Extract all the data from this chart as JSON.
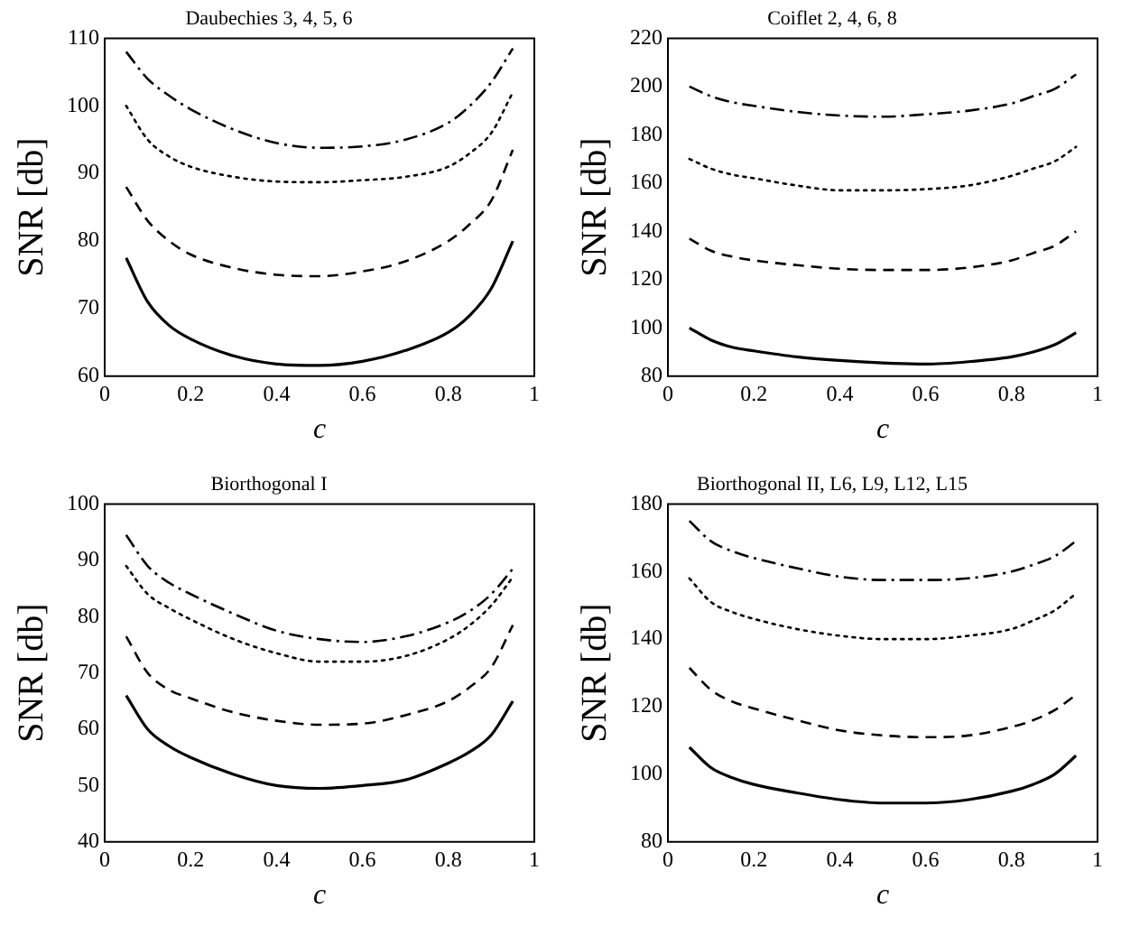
{
  "chart_data": [
    {
      "type": "line",
      "title": "Daubechies 3, 4, 5, 6",
      "xlabel": "c",
      "ylabel": "SNR [db]",
      "xlim": [
        0,
        1
      ],
      "xticks": [
        0,
        0.2,
        0.4,
        0.6,
        0.8,
        1
      ],
      "ylim": [
        60,
        110
      ],
      "yticks": [
        60,
        70,
        80,
        90,
        100,
        110
      ],
      "x": [
        0.05,
        0.1,
        0.15,
        0.2,
        0.3,
        0.4,
        0.5,
        0.6,
        0.7,
        0.8,
        0.85,
        0.9,
        0.95
      ],
      "series": [
        {
          "color": "#000000",
          "line_style": "solid",
          "values": [
            77.5,
            71,
            67.5,
            65.5,
            63,
            61.8,
            61.6,
            62.2,
            63.8,
            66.5,
            69,
            73,
            80
          ]
        },
        {
          "color": "#000000",
          "line_style": "dashed",
          "values": [
            88,
            83,
            80,
            78,
            76,
            75,
            74.8,
            75.5,
            77,
            80,
            82.5,
            86,
            93.5
          ]
        },
        {
          "color": "#000000",
          "line_style": "dotted",
          "values": [
            100,
            95,
            92.5,
            91,
            89.5,
            88.8,
            88.7,
            89,
            89.5,
            91,
            93,
            96,
            102
          ]
        },
        {
          "color": "#000000",
          "line_style": "dashdot",
          "values": [
            108,
            104,
            101.5,
            99.5,
            96.5,
            94.5,
            93.8,
            94,
            95,
            97.5,
            100,
            103.5,
            108.5
          ]
        }
      ]
    },
    {
      "type": "line",
      "title": "Coiflet 2, 4, 6, 8",
      "xlabel": "c",
      "ylabel": "SNR [db]",
      "xlim": [
        0,
        1
      ],
      "xticks": [
        0,
        0.2,
        0.4,
        0.6,
        0.8,
        1
      ],
      "ylim": [
        80,
        220
      ],
      "yticks": [
        80,
        100,
        120,
        140,
        160,
        180,
        200,
        220
      ],
      "x": [
        0.05,
        0.1,
        0.15,
        0.2,
        0.3,
        0.4,
        0.5,
        0.6,
        0.7,
        0.8,
        0.85,
        0.9,
        0.95
      ],
      "series": [
        {
          "color": "#000000",
          "line_style": "solid",
          "values": [
            100,
            95,
            92,
            90.5,
            88,
            86.5,
            85.5,
            85,
            86,
            88,
            90,
            93,
            98
          ]
        },
        {
          "color": "#000000",
          "line_style": "dashed",
          "values": [
            137,
            132,
            129.5,
            128,
            126,
            124.5,
            124,
            124,
            125,
            128,
            131,
            134,
            140
          ]
        },
        {
          "color": "#000000",
          "line_style": "dotted",
          "values": [
            170,
            166,
            163.5,
            162,
            159,
            157,
            157,
            157.5,
            159,
            163,
            166,
            169,
            175
          ]
        },
        {
          "color": "#000000",
          "line_style": "dashdot",
          "values": [
            200,
            196,
            193.5,
            192,
            189.5,
            188,
            187.5,
            188.5,
            190,
            193,
            196,
            199,
            205
          ]
        }
      ]
    },
    {
      "type": "line",
      "title": "Biorthogonal I",
      "xlabel": "c",
      "ylabel": "SNR [db]",
      "xlim": [
        0,
        1
      ],
      "xticks": [
        0,
        0.2,
        0.4,
        0.6,
        0.8,
        1
      ],
      "ylim": [
        40,
        100
      ],
      "yticks": [
        40,
        50,
        60,
        70,
        80,
        90,
        100
      ],
      "x": [
        0.05,
        0.1,
        0.15,
        0.2,
        0.3,
        0.4,
        0.5,
        0.6,
        0.7,
        0.8,
        0.85,
        0.9,
        0.95
      ],
      "series": [
        {
          "color": "#000000",
          "line_style": "solid",
          "values": [
            66,
            60,
            57,
            55,
            52,
            50,
            49.5,
            50,
            51,
            54,
            56,
            59,
            65
          ]
        },
        {
          "color": "#000000",
          "line_style": "dashed",
          "values": [
            76.5,
            70,
            67,
            65.5,
            63,
            61.5,
            60.8,
            61,
            62.5,
            65,
            67.5,
            71,
            78.5
          ]
        },
        {
          "color": "#000000",
          "line_style": "dotted",
          "values": [
            89,
            84,
            81.5,
            79.5,
            76,
            73.5,
            72,
            72,
            73,
            76,
            78.5,
            82,
            87
          ]
        },
        {
          "color": "#000000",
          "line_style": "dashdot",
          "values": [
            94.5,
            89,
            86,
            84,
            80.5,
            77.5,
            76,
            75.5,
            76.5,
            79,
            81,
            84,
            88.5
          ]
        }
      ]
    },
    {
      "type": "line",
      "title": "Biorthogonal II, L6, L9, L12, L15",
      "xlabel": "c",
      "ylabel": "SNR [db]",
      "xlim": [
        0,
        1
      ],
      "xticks": [
        0,
        0.2,
        0.4,
        0.6,
        0.8,
        1
      ],
      "ylim": [
        80,
        180
      ],
      "yticks": [
        80,
        100,
        120,
        140,
        160,
        180
      ],
      "x": [
        0.05,
        0.1,
        0.15,
        0.2,
        0.3,
        0.4,
        0.5,
        0.6,
        0.7,
        0.8,
        0.85,
        0.9,
        0.95
      ],
      "series": [
        {
          "color": "#000000",
          "line_style": "solid",
          "values": [
            108,
            102,
            99,
            97,
            94.5,
            92.5,
            91.5,
            91.5,
            92.5,
            95,
            97,
            100,
            105.5
          ]
        },
        {
          "color": "#000000",
          "line_style": "dashed",
          "values": [
            131.5,
            125,
            121.5,
            119.5,
            116,
            113,
            111.5,
            111,
            111.5,
            114,
            116,
            119,
            123.5
          ]
        },
        {
          "color": "#000000",
          "line_style": "dotted",
          "values": [
            158,
            151,
            148,
            146,
            143,
            141,
            140,
            140,
            141,
            143,
            145.5,
            148.5,
            153.5
          ]
        },
        {
          "color": "#000000",
          "line_style": "dashdot",
          "values": [
            175,
            169,
            166,
            164,
            161,
            158.5,
            157.5,
            157.5,
            158,
            160,
            162,
            164.5,
            169
          ]
        }
      ]
    }
  ]
}
